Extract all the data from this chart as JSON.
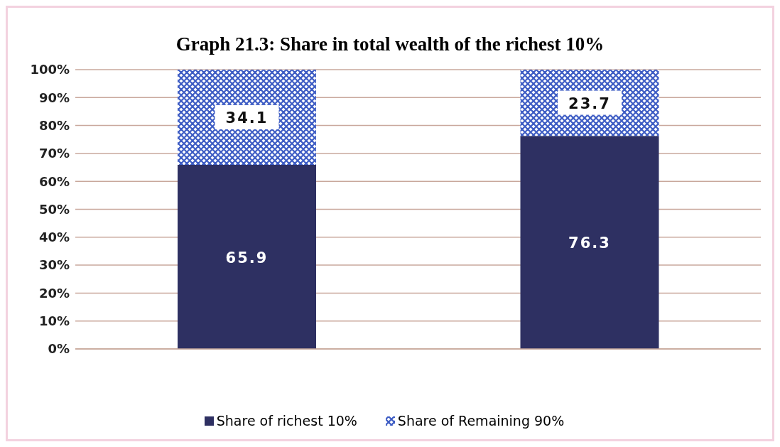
{
  "chart_data": {
    "type": "bar",
    "title": "Graph 21.3: Share in total wealth of the richest 10%",
    "categories": [
      null,
      null
    ],
    "stacked": true,
    "series": [
      {
        "name": "Share of richest 10%",
        "color": "#2e3062",
        "values": [
          65.9,
          76.3
        ]
      },
      {
        "name": "Share of Remaining 90%",
        "color": "#3d5cc4",
        "values": [
          34.1,
          23.7
        ]
      }
    ],
    "ylim": [
      0,
      100
    ],
    "yticks": [
      {
        "value": 0,
        "label": "0%"
      },
      {
        "value": 10,
        "label": "10%"
      },
      {
        "value": 20,
        "label": "20%"
      },
      {
        "value": 30,
        "label": "30%"
      },
      {
        "value": 40,
        "label": "40%"
      },
      {
        "value": 50,
        "label": "50%"
      },
      {
        "value": 60,
        "label": "60%"
      },
      {
        "value": 70,
        "label": "70%"
      },
      {
        "value": 80,
        "label": "80%"
      },
      {
        "value": 90,
        "label": "90%"
      },
      {
        "value": 100,
        "label": "100%"
      }
    ],
    "grid": "y",
    "legend": "bottom",
    "data_labels": true
  }
}
